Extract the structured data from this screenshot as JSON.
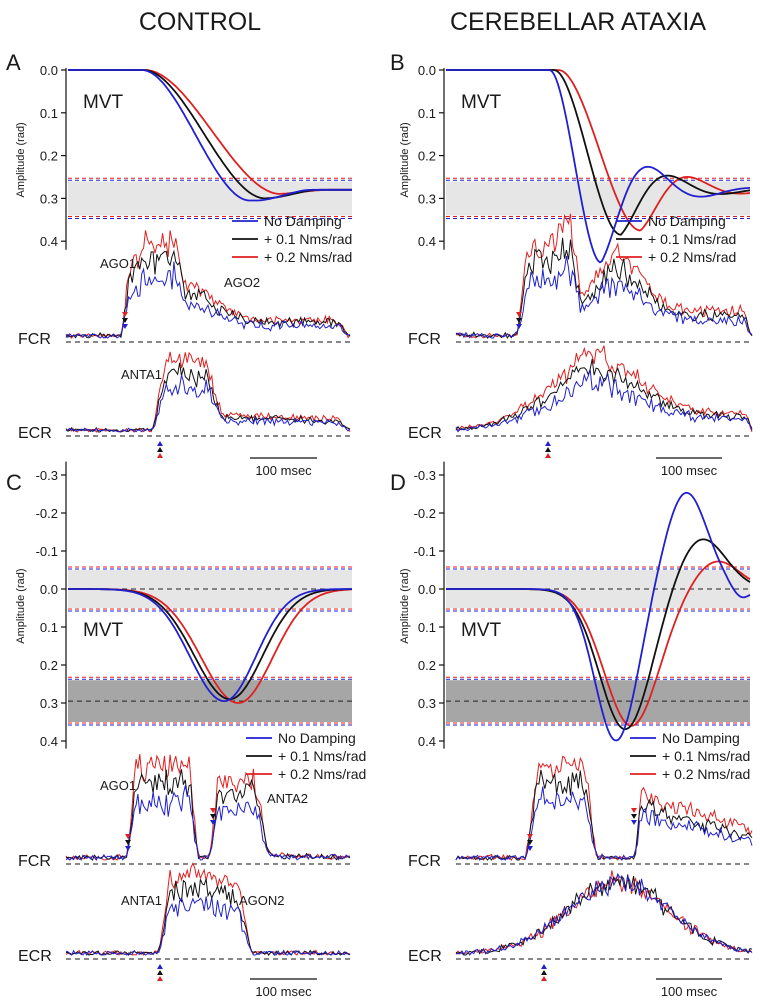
{
  "columns": {
    "left": "CONTROL",
    "right": "CEREBELLAR ATAXIA"
  },
  "colors": {
    "no_damping": "#2020d0",
    "damp_01": "#111111",
    "damp_02": "#e02020",
    "band": "#e6e6e6",
    "band_dark": "#a6a6a6"
  },
  "legend": [
    "No Damping",
    "+ 0.1 Nms/rad",
    "+ 0.2 Nms/rad"
  ],
  "ylabel": "Amplitude (rad)",
  "mvt_label": "MVT",
  "muscles": {
    "flexor": "FCR",
    "extensor": "ECR"
  },
  "scale_bar": "100 msec",
  "chart_data": [
    {
      "panel": "A",
      "type": "line",
      "column": "CONTROL",
      "title": "MVT",
      "ylabel": "Amplitude (rad)",
      "yticks": [
        "0.0",
        "0.1",
        "0.2",
        "0.3",
        "0.4"
      ],
      "ylim": [
        0.0,
        0.42
      ],
      "inverted": true,
      "target_band": [
        0.26,
        0.34
      ],
      "series": [
        {
          "name": "No Damping",
          "peak": 0.305,
          "final": 0.28
        },
        {
          "name": "+ 0.1 Nms/rad",
          "peak": 0.3,
          "final": 0.28
        },
        {
          "name": "+ 0.2 Nms/rad",
          "peak": 0.29,
          "final": 0.28
        }
      ],
      "emg_labels": [
        "AGO1",
        "AGO2",
        "ANTA1"
      ]
    },
    {
      "panel": "B",
      "type": "line",
      "column": "CEREBELLAR ATAXIA",
      "title": "MVT",
      "ylabel": "Amplitude (rad)",
      "yticks": [
        "0.0",
        "0.1",
        "0.2",
        "0.3",
        "0.4"
      ],
      "ylim": [
        0.0,
        0.42
      ],
      "inverted": true,
      "target_band": [
        0.26,
        0.34
      ],
      "series": [
        {
          "name": "No Damping",
          "peak": 0.45,
          "final": 0.28
        },
        {
          "name": "+ 0.1 Nms/rad",
          "peak": 0.385,
          "final": 0.28
        },
        {
          "name": "+ 0.2 Nms/rad",
          "peak": 0.375,
          "final": 0.28
        }
      ],
      "emg_labels": []
    },
    {
      "panel": "C",
      "type": "line",
      "column": "CONTROL",
      "title": "MVT",
      "ylabel": "Amplitude (rad)",
      "yticks": [
        "-0.3",
        "-0.2",
        "-0.1",
        "0.0",
        "0.1",
        "0.2",
        "0.3",
        "0.4"
      ],
      "ylim": [
        -0.33,
        0.42
      ],
      "inverted": true,
      "target_bands": [
        [
          -0.05,
          0.05
        ],
        [
          0.24,
          0.35
        ]
      ],
      "series": [
        {
          "name": "No Damping",
          "peak": 0.295,
          "final": 0.0
        },
        {
          "name": "+ 0.1 Nms/rad",
          "peak": 0.29,
          "final": 0.0
        },
        {
          "name": "+ 0.2 Nms/rad",
          "peak": 0.3,
          "final": 0.0
        }
      ],
      "emg_labels": [
        "AGO1",
        "ANTA2",
        "ANTA1",
        "AGON2"
      ]
    },
    {
      "panel": "D",
      "type": "line",
      "column": "CEREBELLAR ATAXIA",
      "title": "MVT",
      "ylabel": "Amplitude (rad)",
      "yticks": [
        "-0.3",
        "-0.2",
        "-0.1",
        "0.0",
        "0.1",
        "0.2",
        "0.3",
        "0.4"
      ],
      "ylim": [
        -0.33,
        0.42
      ],
      "inverted": true,
      "target_bands": [
        [
          -0.05,
          0.05
        ],
        [
          0.24,
          0.35
        ]
      ],
      "series": [
        {
          "name": "No Damping",
          "peak": 0.4,
          "overshoot": -0.255,
          "final": 0.0
        },
        {
          "name": "+ 0.1 Nms/rad",
          "peak": 0.37,
          "overshoot": -0.135,
          "final": 0.0
        },
        {
          "name": "+ 0.2 Nms/rad",
          "peak": 0.36,
          "overshoot": -0.075,
          "final": 0.0
        }
      ],
      "emg_labels": []
    }
  ]
}
